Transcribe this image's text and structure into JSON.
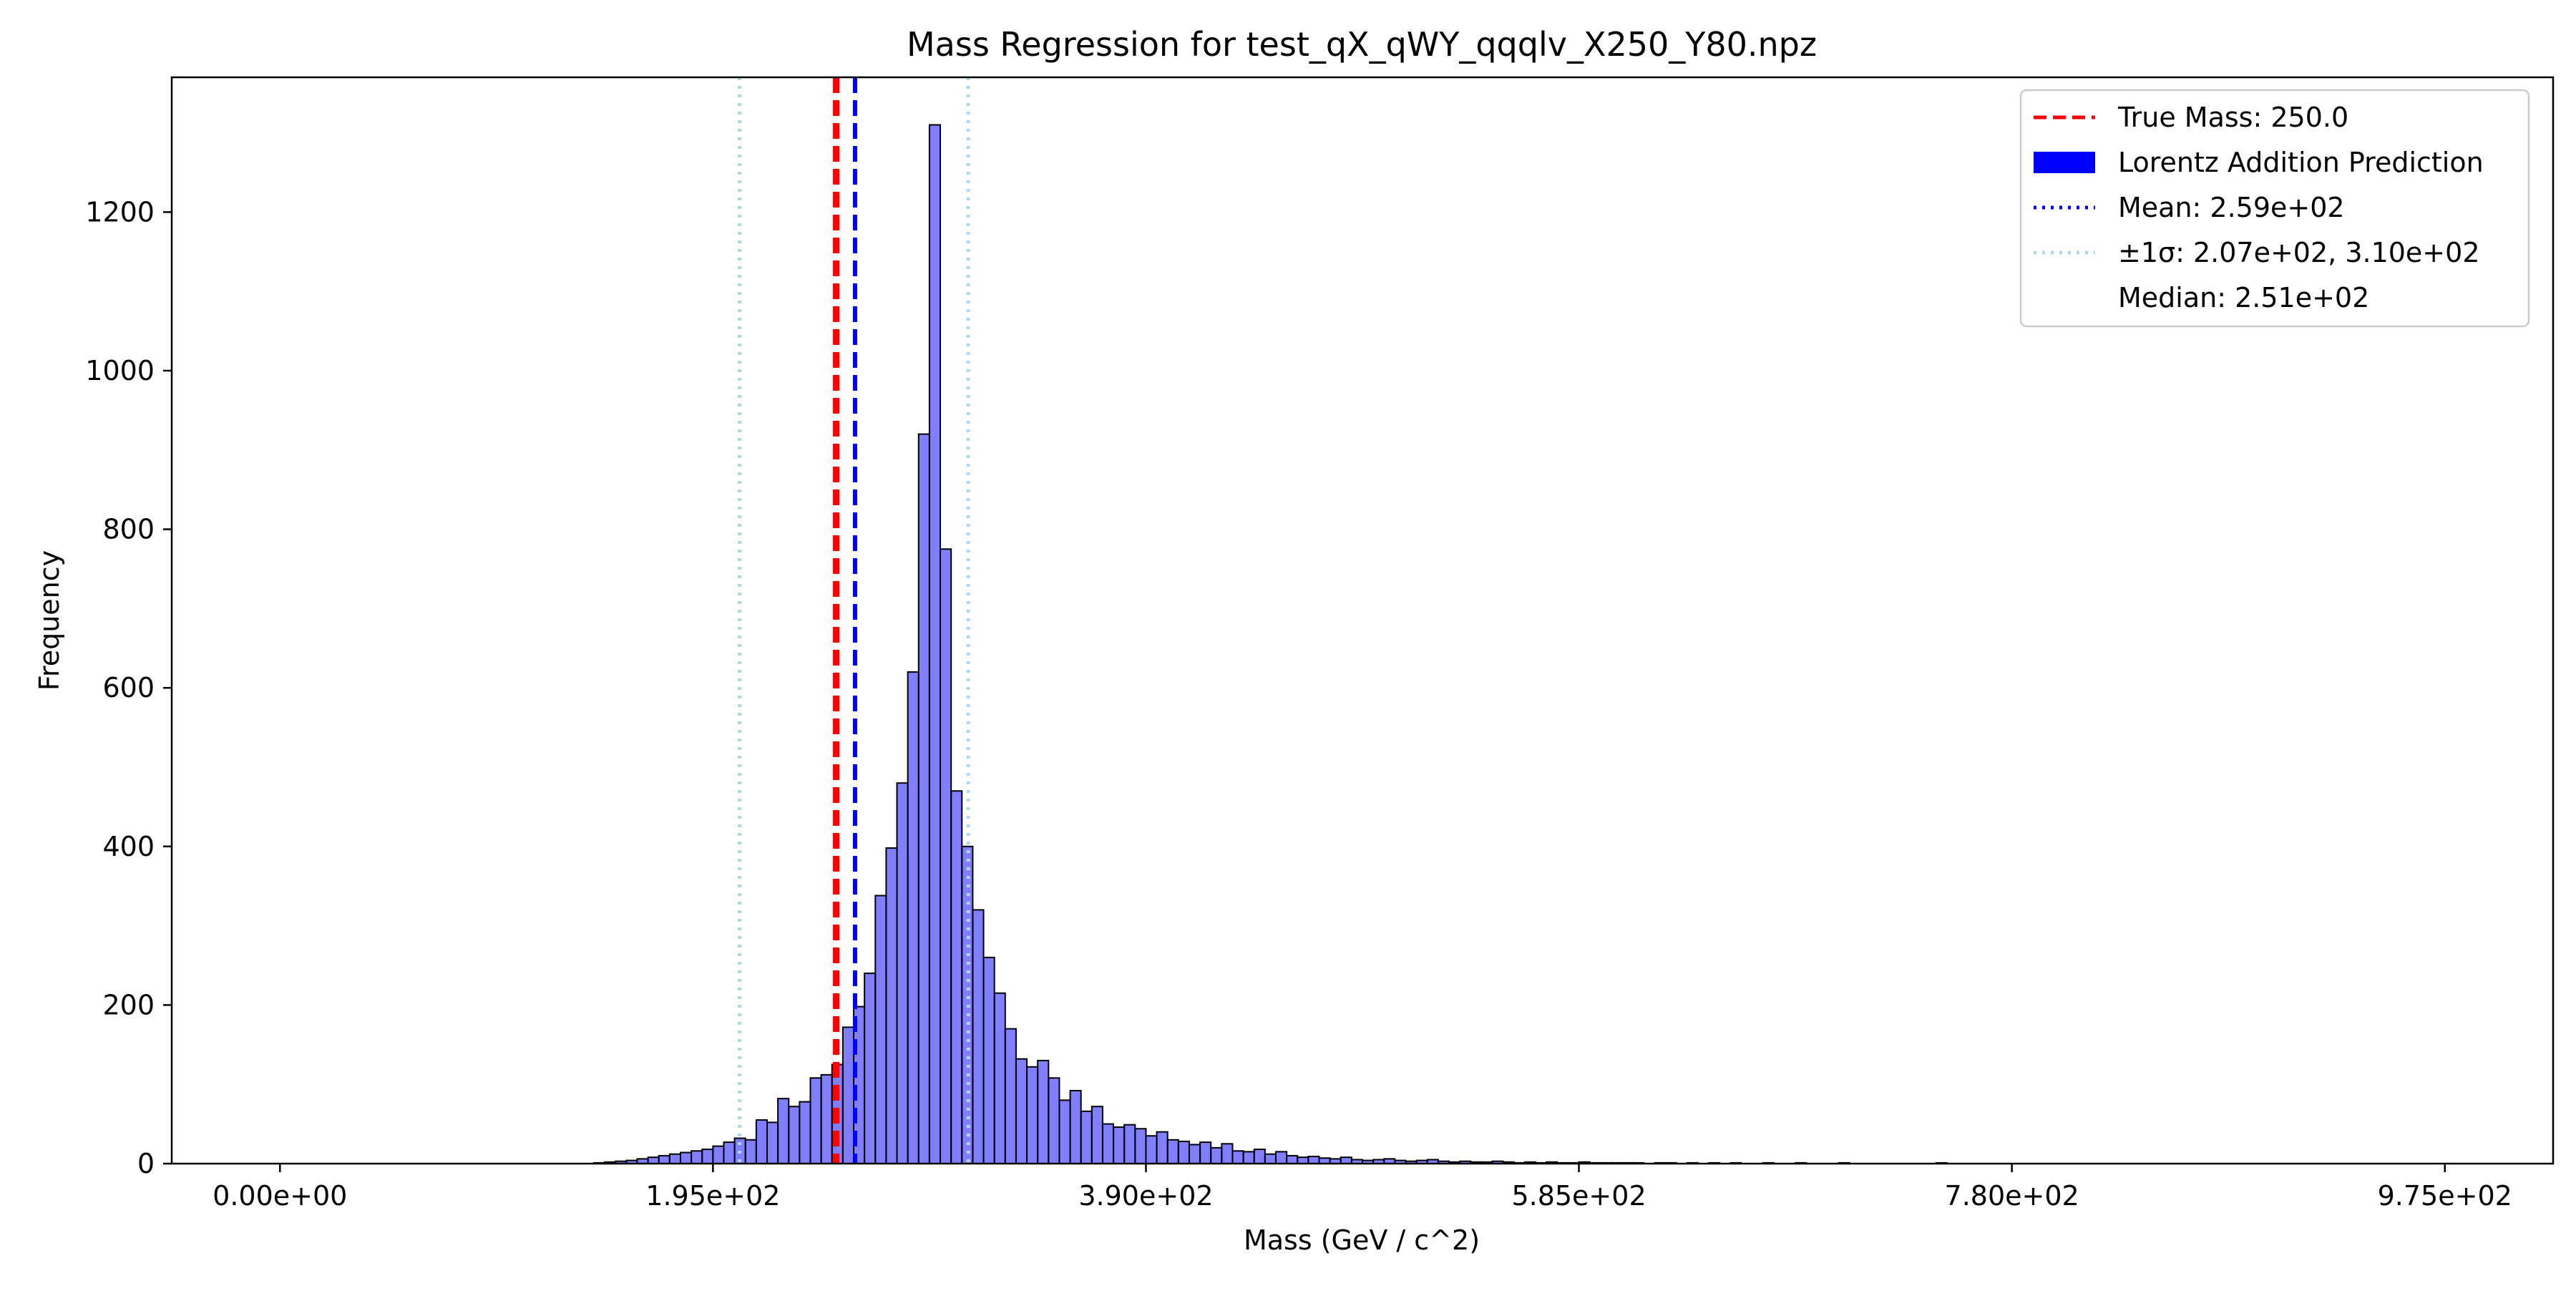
{
  "chart_data": {
    "type": "bar",
    "title": "Mass Regression for test_qX_qWY_qqqlv_X250_Y80.npz",
    "xlabel": "Mass (GeV / c^2)",
    "ylabel": "Frequency",
    "xlim": [
      -48.75,
      1023.75
    ],
    "ylim": [
      0,
      1370
    ],
    "grid": false,
    "legend_position": "top-right",
    "xticks": [
      0,
      195,
      390,
      585,
      780,
      975
    ],
    "xtick_labels": [
      "0.00e+00",
      "1.95e+02",
      "3.90e+02",
      "5.85e+02",
      "7.80e+02",
      "9.75e+02"
    ],
    "yticks": [
      0,
      200,
      400,
      600,
      800,
      1000,
      1200
    ],
    "ytick_labels": [
      "0",
      "200",
      "400",
      "600",
      "800",
      "1000",
      "1200"
    ],
    "histogram": {
      "bin_start": 0,
      "bin_width": 4.875,
      "fill_color": "#0000ff",
      "fill_opacity": 0.5,
      "edge_color": "#000000",
      "counts": [
        0,
        0,
        0,
        0,
        0,
        0,
        0,
        0,
        0,
        0,
        0,
        0,
        0,
        0,
        0,
        0,
        0,
        0,
        0,
        0,
        0,
        0,
        0,
        0,
        0,
        0,
        0,
        0,
        0,
        1,
        2,
        3,
        4,
        6,
        8,
        10,
        12,
        14,
        16,
        18,
        22,
        27,
        32,
        30,
        55,
        52,
        82,
        72,
        78,
        108,
        112,
        125,
        172,
        198,
        240,
        338,
        398,
        480,
        620,
        920,
        1310,
        775,
        470,
        400,
        320,
        260,
        215,
        170,
        132,
        122,
        130,
        108,
        80,
        92,
        66,
        72,
        50,
        46,
        49,
        44,
        35,
        40,
        30,
        28,
        24,
        27,
        20,
        25,
        16,
        15,
        18,
        12,
        15,
        10,
        8,
        9,
        7,
        6,
        8,
        5,
        4,
        5,
        6,
        4,
        3,
        4,
        5,
        3,
        2,
        3,
        2,
        2,
        3,
        2,
        1,
        2,
        1,
        2,
        1,
        1,
        2,
        1,
        1,
        1,
        1,
        1,
        0,
        1,
        1,
        0,
        1,
        0,
        1,
        0,
        1,
        0,
        0,
        1,
        0,
        0,
        1,
        0,
        0,
        0,
        1,
        0,
        0,
        0,
        0,
        0,
        0,
        0,
        0,
        1,
        0,
        0,
        0,
        0,
        0,
        0,
        0,
        0,
        0,
        0,
        0,
        0,
        0,
        0,
        0,
        0,
        0,
        0,
        0,
        0,
        0,
        0,
        0,
        0,
        0,
        0,
        0,
        0,
        0,
        0,
        0,
        0,
        0,
        0,
        0,
        0,
        0,
        0,
        0,
        0,
        0,
        0,
        0,
        0,
        0,
        0,
        0,
        0
      ]
    },
    "reference_lines": [
      {
        "name": "true-mass",
        "x": 250.0,
        "color": "#ff0000",
        "style": "dashed"
      },
      {
        "name": "median",
        "x": 251.0,
        "color": "#ff0000",
        "style": "dashed"
      },
      {
        "name": "mean",
        "x": 259.0,
        "color": "#0000ff",
        "style": "dashed"
      },
      {
        "name": "sigma-low",
        "x": 207.0,
        "color": "#add8e6",
        "style": "dotted"
      },
      {
        "name": "sigma-high",
        "x": 310.0,
        "color": "#add8e6",
        "style": "dotted"
      }
    ],
    "legend": [
      {
        "label": "True Mass: 250.0",
        "marker": "dashed",
        "color": "#ff0000"
      },
      {
        "label": "Lorentz Addition Prediction",
        "marker": "patch",
        "color": "#0000ff"
      },
      {
        "label": "Mean: 2.59e+02",
        "marker": "dotted",
        "color": "#0000ff"
      },
      {
        "label": "±1σ: 2.07e+02, 3.10e+02",
        "marker": "dotted",
        "color": "#add8e6"
      },
      {
        "label": "Median: 2.51e+02",
        "marker": "none",
        "color": "#ffffff"
      }
    ]
  }
}
